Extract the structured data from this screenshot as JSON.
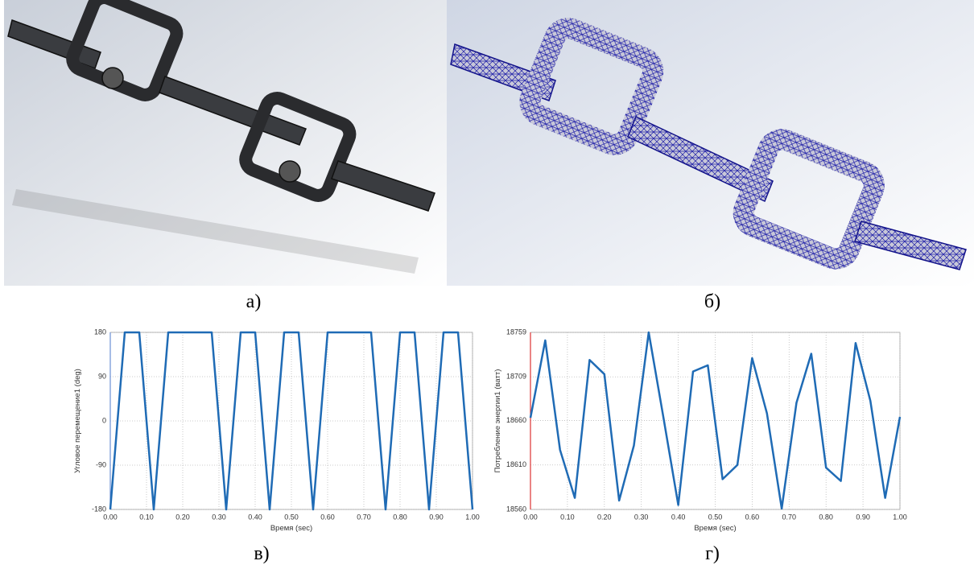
{
  "figure": {
    "captions": [
      "а)",
      "б)",
      "в)",
      "г)"
    ]
  },
  "chart_data": [
    {
      "type": "line",
      "xlabel": "Время (sec)",
      "ylabel": "Угловое перемещение1 (deg)",
      "x": [
        0,
        0.04,
        0.08,
        0.12,
        0.16,
        0.28,
        0.32,
        0.36,
        0.4,
        0.44,
        0.48,
        0.52,
        0.56,
        0.6,
        0.72,
        0.76,
        0.8,
        0.84,
        0.88,
        0.92,
        0.96,
        1.0
      ],
      "series": [
        {
          "color": "#1f6bb5",
          "values": [
            -180,
            180,
            180,
            -180,
            180,
            180,
            -180,
            180,
            180,
            -180,
            180,
            180,
            -180,
            180,
            180,
            -180,
            180,
            180,
            -180,
            180,
            180,
            -180
          ]
        }
      ],
      "xlim": [
        0,
        1
      ],
      "ylim": [
        -180,
        180
      ],
      "xticks": [
        {
          "value": 0,
          "label": "0.00"
        },
        {
          "value": 0.1,
          "label": "0.10"
        },
        {
          "value": 0.2,
          "label": "0.20"
        },
        {
          "value": 0.3,
          "label": "0.30"
        },
        {
          "value": 0.4,
          "label": "0.40"
        },
        {
          "value": 0.5,
          "label": "0.50"
        },
        {
          "value": 0.6,
          "label": "0.60"
        },
        {
          "value": 0.7,
          "label": "0.70"
        },
        {
          "value": 0.8,
          "label": "0.80"
        },
        {
          "value": 0.9,
          "label": "0.90"
        },
        {
          "value": 1,
          "label": "1.00"
        }
      ],
      "yticks": [
        -180,
        -90,
        0,
        90,
        180
      ],
      "grid": true,
      "y_axis_color": "#6b8fd6"
    },
    {
      "type": "line",
      "xlabel": "Время (sec)",
      "ylabel": "Потребление энергии1 (ватт)",
      "x": [
        0,
        0.04,
        0.08,
        0.12,
        0.16,
        0.2,
        0.24,
        0.28,
        0.32,
        0.36,
        0.4,
        0.44,
        0.48,
        0.52,
        0.56,
        0.6,
        0.64,
        0.68,
        0.72,
        0.76,
        0.8,
        0.84,
        0.88,
        0.92,
        0.96,
        1.0
      ],
      "series": [
        {
          "color": "#1f6bb5",
          "values": [
            18663,
            18750,
            18627,
            18573,
            18728,
            18712,
            18570,
            18632,
            18759,
            18663,
            18565,
            18715,
            18722,
            18594,
            18610,
            18730,
            18668,
            18561,
            18680,
            18735,
            18607,
            18592,
            18747,
            18682,
            18573,
            18664
          ]
        }
      ],
      "xlim": [
        0,
        1
      ],
      "ylim": [
        18560,
        18759
      ],
      "xticks": [
        {
          "value": 0,
          "label": "0.00"
        },
        {
          "value": 0.1,
          "label": "0.10"
        },
        {
          "value": 0.2,
          "label": "0.20"
        },
        {
          "value": 0.3,
          "label": "0.30"
        },
        {
          "value": 0.4,
          "label": "0.40"
        },
        {
          "value": 0.5,
          "label": "0.50"
        },
        {
          "value": 0.6,
          "label": "0.60"
        },
        {
          "value": 0.7,
          "label": "0.70"
        },
        {
          "value": 0.8,
          "label": "0.80"
        },
        {
          "value": 0.9,
          "label": "0.90"
        },
        {
          "value": 1,
          "label": "1.00"
        }
      ],
      "yticks": [
        18560,
        18610,
        18660,
        18709,
        18759
      ],
      "grid": true,
      "y_axis_color": "#d33"
    }
  ]
}
